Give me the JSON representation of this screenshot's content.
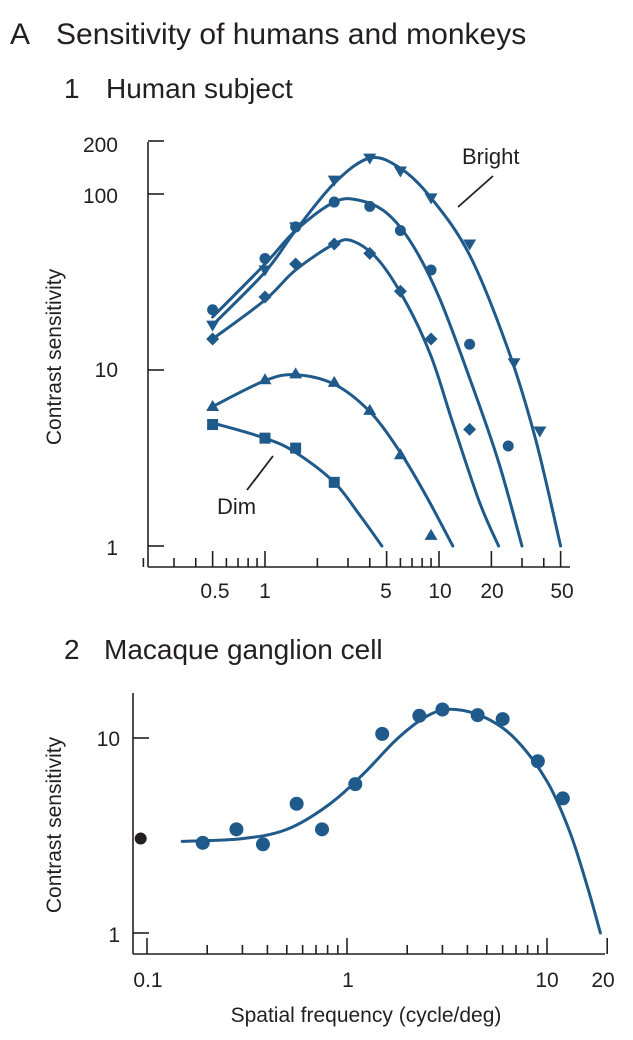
{
  "figure": {
    "panel_label": "A",
    "title": "Sensitivity of humans and monkeys"
  },
  "colors": {
    "series": "#1f5a8a",
    "ink": "#231f20",
    "marker_black": "#231f20"
  },
  "chart_data": [
    {
      "type": "line",
      "subtitle_number": "1",
      "title": "Human subject",
      "xlabel": "",
      "ylabel": "Contrast sensitivity",
      "xscale": "log",
      "yscale": "log",
      "xlim": [
        0.5,
        50
      ],
      "ylim": [
        1,
        200
      ],
      "x_tick_labels": [
        "0.5",
        "1",
        "5",
        "10",
        "20",
        "50"
      ],
      "y_tick_labels": [
        "1",
        "10",
        "100",
        "200"
      ],
      "annotations": [
        {
          "text": "Bright",
          "points_to_series": "s1"
        },
        {
          "text": "Dim",
          "points_to_series": "s5"
        }
      ],
      "series": [
        {
          "id": "s1",
          "marker": "triangle-down",
          "points": [
            [
              0.5,
              18
            ],
            [
              1,
              37
            ],
            [
              1.5,
              65
            ],
            [
              2.5,
              120
            ],
            [
              4,
              160
            ],
            [
              6,
              135
            ],
            [
              9,
              95
            ],
            [
              15,
              52
            ],
            [
              27,
              11
            ],
            [
              38,
              4.5
            ]
          ],
          "curve": [
            [
              0.5,
              18
            ],
            [
              1,
              36
            ],
            [
              1.5,
              62
            ],
            [
              2.5,
              115
            ],
            [
              4,
              160
            ],
            [
              6,
              140
            ],
            [
              9,
              95
            ],
            [
              15,
              45
            ],
            [
              25,
              13
            ],
            [
              36,
              4
            ],
            [
              50,
              1
            ]
          ]
        },
        {
          "id": "s2",
          "marker": "circle",
          "points": [
            [
              0.5,
              22
            ],
            [
              1,
              43
            ],
            [
              1.5,
              65
            ],
            [
              2.5,
              90
            ],
            [
              4,
              85
            ],
            [
              6,
              62
            ],
            [
              9,
              37
            ],
            [
              15,
              14
            ],
            [
              25,
              3.7
            ]
          ],
          "curve": [
            [
              0.5,
              20
            ],
            [
              1,
              40
            ],
            [
              1.5,
              62
            ],
            [
              2.5,
              90
            ],
            [
              3.5,
              92
            ],
            [
              5,
              78
            ],
            [
              7,
              52
            ],
            [
              10,
              26
            ],
            [
              15,
              9
            ],
            [
              22,
              3
            ],
            [
              30,
              1
            ]
          ]
        },
        {
          "id": "s3",
          "marker": "diamond",
          "points": [
            [
              0.5,
              15
            ],
            [
              1,
              26
            ],
            [
              1.5,
              40
            ],
            [
              2.5,
              52
            ],
            [
              4,
              46
            ],
            [
              6,
              28
            ],
            [
              9,
              15
            ],
            [
              15,
              4.6
            ]
          ],
          "curve": [
            [
              0.5,
              15
            ],
            [
              1,
              25
            ],
            [
              1.5,
              37
            ],
            [
              2.5,
              52
            ],
            [
              3.2,
              54
            ],
            [
              4.5,
              42
            ],
            [
              6.5,
              24
            ],
            [
              9,
              12
            ],
            [
              12,
              5
            ],
            [
              17,
              1.8
            ],
            [
              22,
              1
            ]
          ]
        },
        {
          "id": "s4",
          "marker": "triangle-up",
          "points": [
            [
              0.5,
              6.2
            ],
            [
              1,
              8.8
            ],
            [
              1.5,
              9.5
            ],
            [
              2.5,
              8.5
            ],
            [
              4,
              5.9
            ],
            [
              6,
              3.3
            ],
            [
              9,
              1.15
            ]
          ],
          "curve": [
            [
              0.5,
              6.2
            ],
            [
              1,
              8.7
            ],
            [
              1.5,
              9.4
            ],
            [
              2.5,
              8.3
            ],
            [
              4,
              5.8
            ],
            [
              6,
              3.4
            ],
            [
              8.5,
              1.9
            ],
            [
              12,
              1
            ]
          ]
        },
        {
          "id": "s5",
          "marker": "square",
          "points": [
            [
              0.5,
              4.9
            ],
            [
              1,
              4.1
            ],
            [
              1.5,
              3.6
            ],
            [
              2.5,
              2.3
            ]
          ],
          "curve": [
            [
              0.5,
              5
            ],
            [
              1,
              4.1
            ],
            [
              1.5,
              3.4
            ],
            [
              2.5,
              2.3
            ],
            [
              3.5,
              1.5
            ],
            [
              4.7,
              1
            ]
          ]
        }
      ]
    },
    {
      "type": "line",
      "subtitle_number": "2",
      "title": "Macaque ganglion cell",
      "xlabel": "Spatial frequency (cycle/deg)",
      "ylabel": "Contrast sensitivity",
      "xscale": "log",
      "yscale": "log",
      "xlim": [
        0.1,
        20
      ],
      "ylim": [
        1,
        20
      ],
      "x_tick_labels": [
        "0.1",
        "1",
        "10",
        "20"
      ],
      "y_tick_labels": [
        "1",
        "10"
      ],
      "series": [
        {
          "id": "m1",
          "marker": "circle",
          "points": [
            [
              0.19,
              2.9
            ],
            [
              0.28,
              3.4
            ],
            [
              0.38,
              2.85
            ],
            [
              0.56,
              4.6
            ],
            [
              0.75,
              3.4
            ],
            [
              1.1,
              5.8
            ],
            [
              1.5,
              10.5
            ],
            [
              2.3,
              13
            ],
            [
              3,
              14
            ],
            [
              4.5,
              13.1
            ],
            [
              6,
              12.5
            ],
            [
              9,
              7.6
            ],
            [
              12,
              4.9
            ]
          ],
          "curve": [
            [
              0.15,
              2.95
            ],
            [
              0.3,
              3.05
            ],
            [
              0.5,
              3.4
            ],
            [
              0.8,
              4.5
            ],
            [
              1.2,
              6.5
            ],
            [
              1.8,
              10
            ],
            [
              2.6,
              13.2
            ],
            [
              3.5,
              14
            ],
            [
              5,
              12.6
            ],
            [
              7,
              9.8
            ],
            [
              10,
              6
            ],
            [
              13,
              3.3
            ],
            [
              16,
              1.7
            ],
            [
              18.5,
              1
            ]
          ]
        }
      ],
      "extra_points": [
        {
          "x": 0.093,
          "y": 3.05,
          "color": "black"
        }
      ]
    }
  ]
}
